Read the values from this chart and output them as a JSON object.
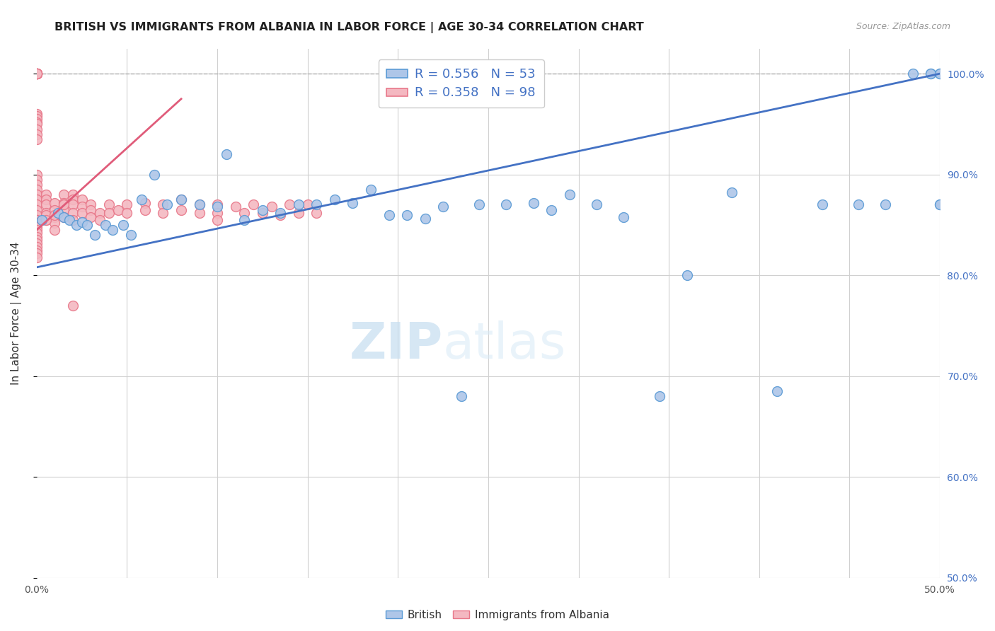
{
  "title": "BRITISH VS IMMIGRANTS FROM ALBANIA IN LABOR FORCE | AGE 30-34 CORRELATION CHART",
  "source": "Source: ZipAtlas.com",
  "ylabel": "In Labor Force | Age 30-34",
  "xlim": [
    0.0,
    0.5
  ],
  "ylim": [
    0.5,
    1.025
  ],
  "british_color": "#aec6e8",
  "albania_color": "#f4b8c1",
  "british_edge": "#5b9bd5",
  "albania_edge": "#e8788a",
  "trendline_british_color": "#4472c4",
  "trendline_albania_color": "#e05c7a",
  "legend_R_british": "R = 0.556",
  "legend_N_british": "N = 53",
  "legend_R_albania": "R = 0.358",
  "legend_N_albania": "N = 98",
  "watermark_zip": "ZIP",
  "watermark_atlas": "atlas",
  "british_x": [
    0.003,
    0.012,
    0.015,
    0.018,
    0.022,
    0.025,
    0.028,
    0.032,
    0.038,
    0.042,
    0.048,
    0.052,
    0.058,
    0.065,
    0.072,
    0.08,
    0.09,
    0.1,
    0.105,
    0.115,
    0.125,
    0.135,
    0.145,
    0.155,
    0.165,
    0.175,
    0.185,
    0.195,
    0.205,
    0.215,
    0.225,
    0.235,
    0.245,
    0.26,
    0.275,
    0.285,
    0.295,
    0.31,
    0.325,
    0.345,
    0.36,
    0.385,
    0.41,
    0.435,
    0.455,
    0.47,
    0.485,
    0.495,
    0.5,
    0.5,
    0.5,
    0.495,
    0.5
  ],
  "british_y": [
    0.855,
    0.862,
    0.858,
    0.855,
    0.85,
    0.853,
    0.85,
    0.84,
    0.85,
    0.845,
    0.85,
    0.84,
    0.875,
    0.9,
    0.87,
    0.875,
    0.87,
    0.868,
    0.92,
    0.855,
    0.865,
    0.862,
    0.87,
    0.87,
    0.875,
    0.872,
    0.885,
    0.86,
    0.86,
    0.856,
    0.868,
    0.68,
    0.87,
    0.87,
    0.872,
    0.865,
    0.88,
    0.87,
    0.858,
    0.68,
    0.8,
    0.882,
    0.685,
    0.87,
    0.87,
    0.87,
    1.0,
    1.0,
    1.0,
    0.87,
    1.0,
    1.0,
    0.87
  ],
  "albania_x": [
    0.0,
    0.0,
    0.0,
    0.0,
    0.0,
    0.0,
    0.0,
    0.0,
    0.0,
    0.0,
    0.0,
    0.0,
    0.0,
    0.0,
    0.0,
    0.0,
    0.0,
    0.0,
    0.0,
    0.0,
    0.0,
    0.0,
    0.0,
    0.0,
    0.0,
    0.0,
    0.0,
    0.0,
    0.005,
    0.005,
    0.005,
    0.005,
    0.005,
    0.01,
    0.01,
    0.01,
    0.01,
    0.01,
    0.015,
    0.015,
    0.015,
    0.015,
    0.02,
    0.02,
    0.02,
    0.02,
    0.025,
    0.025,
    0.025,
    0.03,
    0.03,
    0.03,
    0.035,
    0.035,
    0.04,
    0.04,
    0.045,
    0.05,
    0.05,
    0.06,
    0.06,
    0.07,
    0.07,
    0.08,
    0.08,
    0.09,
    0.09,
    0.1,
    0.1,
    0.1,
    0.11,
    0.115,
    0.12,
    0.125,
    0.13,
    0.135,
    0.14,
    0.145,
    0.15,
    0.155,
    0.0,
    0.0,
    0.0,
    0.0,
    0.0,
    0.0,
    0.0,
    0.0,
    0.0,
    0.0,
    0.0,
    0.0,
    0.005,
    0.005,
    0.01,
    0.015,
    0.02,
    0.02
  ],
  "albania_y": [
    1.0,
    1.0,
    1.0,
    1.0,
    1.0,
    1.0,
    1.0,
    1.0,
    1.0,
    1.0,
    0.96,
    0.958,
    0.955,
    0.952,
    0.95,
    0.945,
    0.94,
    0.935,
    0.9,
    0.895,
    0.89,
    0.885,
    0.88,
    0.875,
    0.87,
    0.865,
    0.86,
    0.855,
    0.88,
    0.875,
    0.87,
    0.862,
    0.855,
    0.872,
    0.865,
    0.858,
    0.852,
    0.845,
    0.88,
    0.872,
    0.865,
    0.858,
    0.88,
    0.875,
    0.87,
    0.862,
    0.875,
    0.868,
    0.862,
    0.87,
    0.865,
    0.858,
    0.862,
    0.855,
    0.87,
    0.862,
    0.865,
    0.87,
    0.862,
    0.872,
    0.865,
    0.87,
    0.862,
    0.875,
    0.865,
    0.87,
    0.862,
    0.87,
    0.862,
    0.855,
    0.868,
    0.862,
    0.87,
    0.862,
    0.868,
    0.86,
    0.87,
    0.862,
    0.87,
    0.862,
    0.855,
    0.852,
    0.848,
    0.845,
    0.842,
    0.838,
    0.835,
    0.832,
    0.828,
    0.825,
    0.822,
    0.818,
    0.86,
    0.855,
    0.86,
    0.87,
    0.855,
    0.77
  ],
  "british_trendline_x": [
    0.0,
    0.5
  ],
  "british_trendline_y": [
    0.808,
    1.0
  ],
  "albania_trendline_x": [
    0.0,
    0.08
  ],
  "albania_trendline_y": [
    0.845,
    0.975
  ]
}
